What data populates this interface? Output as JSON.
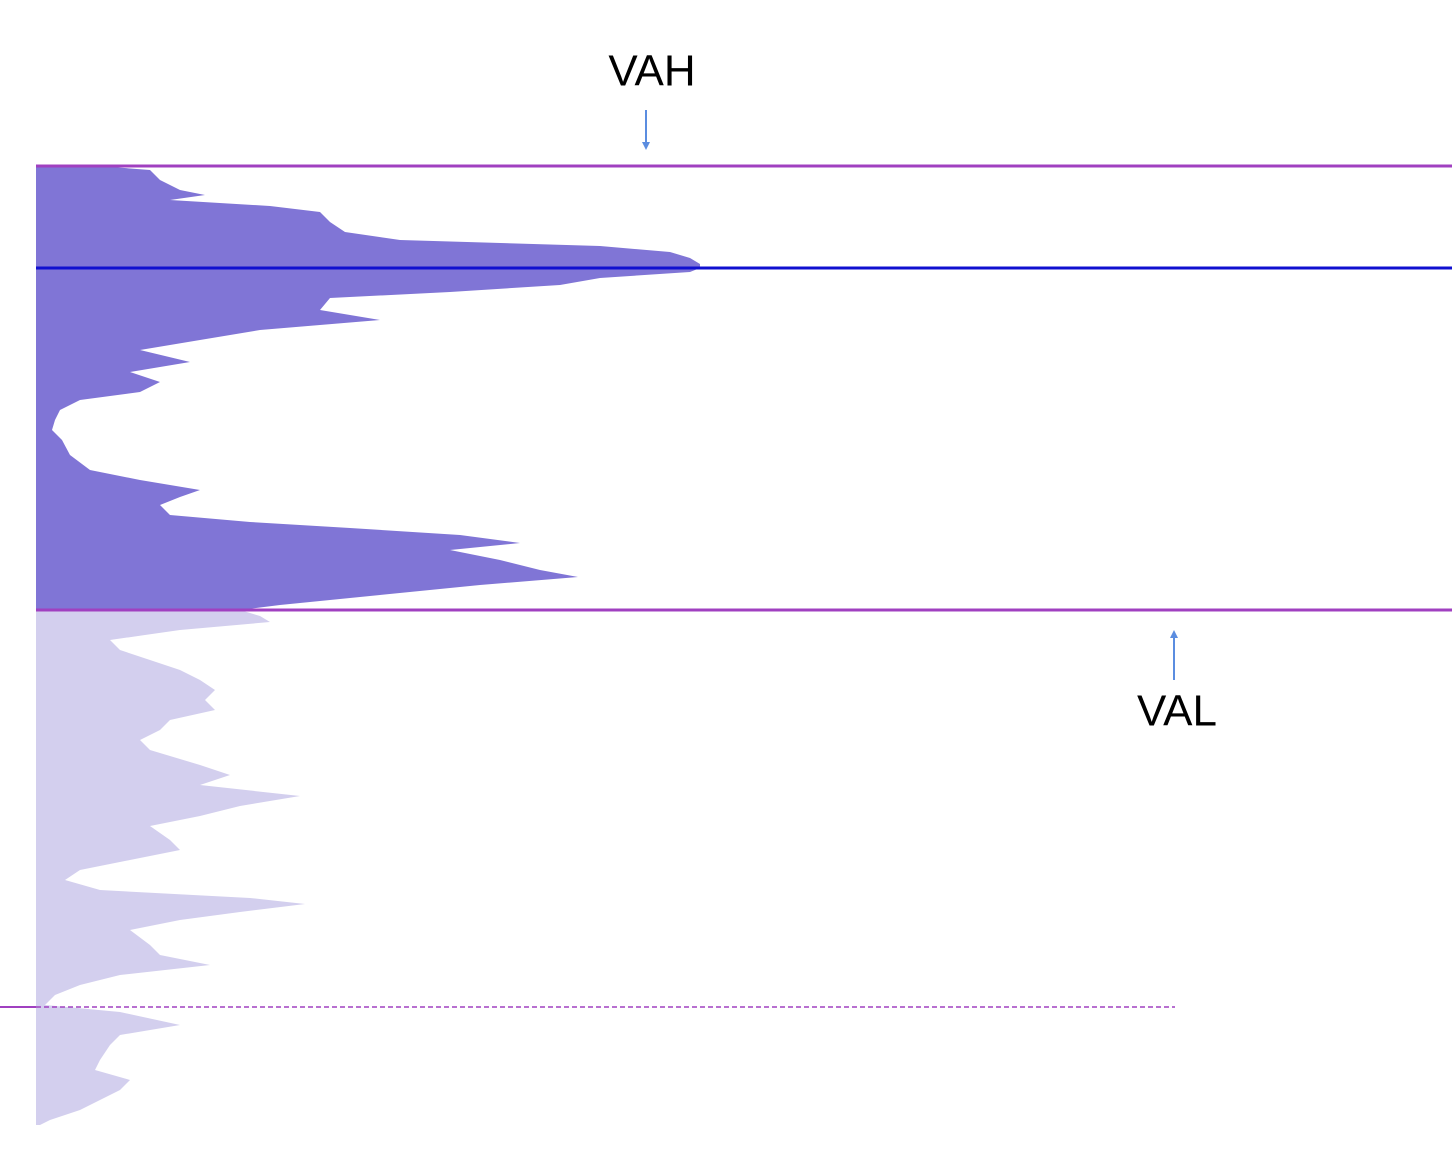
{
  "labels": {
    "vah": "VAH",
    "val": "VAL"
  }
}
